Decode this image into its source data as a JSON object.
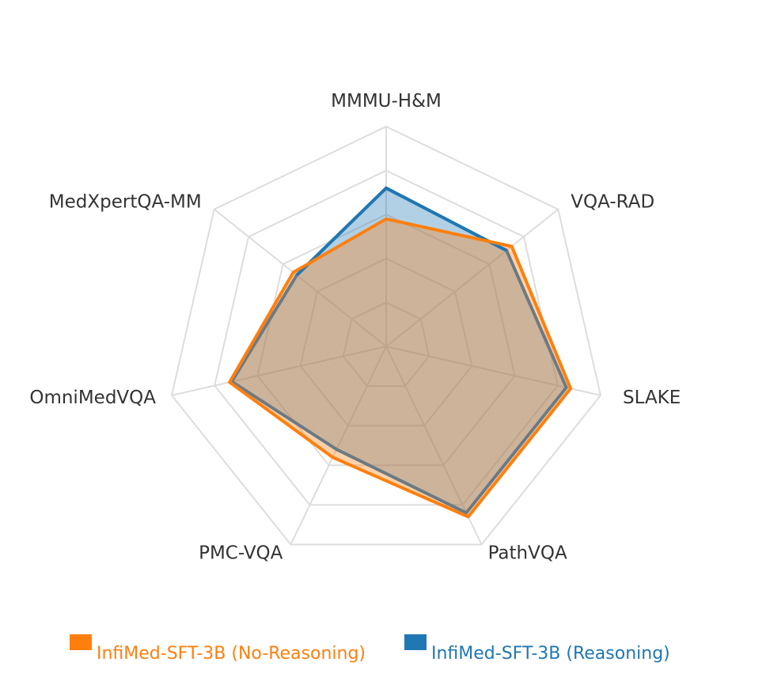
{
  "chart_data": {
    "type": "radar",
    "axes": [
      "MMMU-H&M",
      "VQA-RAD",
      "SLAKE",
      "PathVQA",
      "PMC-VQA",
      "OmniMedVQA",
      "MedXpertQA-MM"
    ],
    "rmax": 100,
    "grid_levels": 5,
    "grid": true,
    "legend_position": "bottom",
    "series": [
      {
        "name": "InfiMed-SFT-3B (No-Reasoning)",
        "color": "#ff7f0e",
        "fill_opacity": 0.35,
        "values": [
          58,
          73,
          86,
          86,
          56,
          73,
          54
        ]
      },
      {
        "name": "InfiMed-SFT-3B (Reasoning)",
        "color": "#1f77b4",
        "fill_opacity": 0.35,
        "values": [
          72,
          70,
          84,
          84,
          52,
          72,
          52
        ]
      }
    ]
  }
}
